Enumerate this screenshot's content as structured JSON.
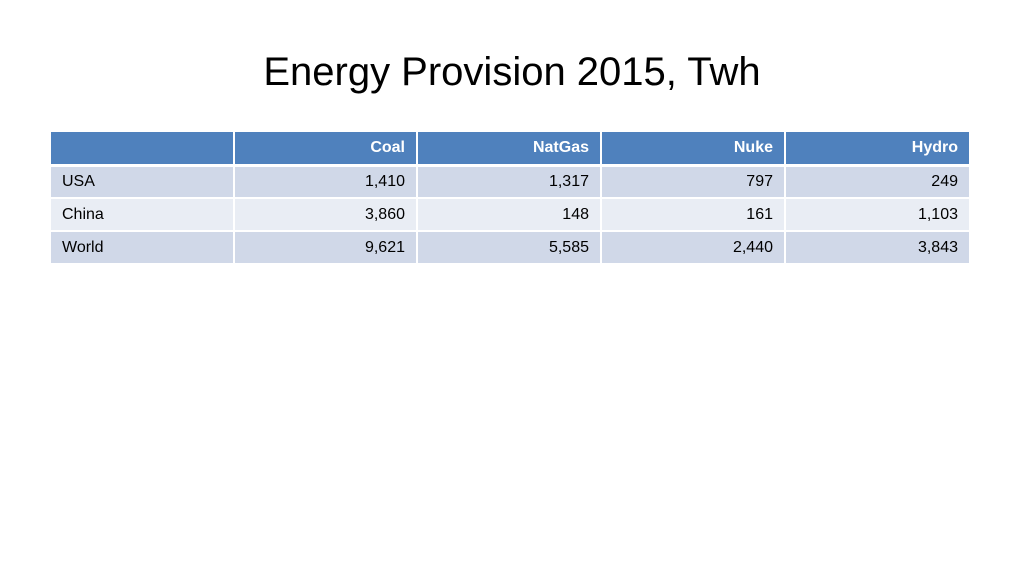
{
  "title": "Energy Provision 2015, Twh",
  "chart_data": {
    "type": "table",
    "title": "Energy Provision 2015, Twh",
    "columns": [
      "",
      "Coal",
      "NatGas",
      "Nuke",
      "Hydro"
    ],
    "rows": [
      {
        "label": "USA",
        "values": [
          "1,410",
          "1,317",
          "797",
          "249"
        ]
      },
      {
        "label": "China",
        "values": [
          "3,860",
          "148",
          "161",
          "1,103"
        ]
      },
      {
        "label": "World",
        "values": [
          "9,621",
          "5,585",
          "2,440",
          "3,843"
        ]
      }
    ],
    "colors": {
      "header_bg": "#4f81bd",
      "header_text": "#ffffff",
      "row_band_1": "#d0d8e8",
      "row_band_2": "#e9edf4"
    }
  }
}
